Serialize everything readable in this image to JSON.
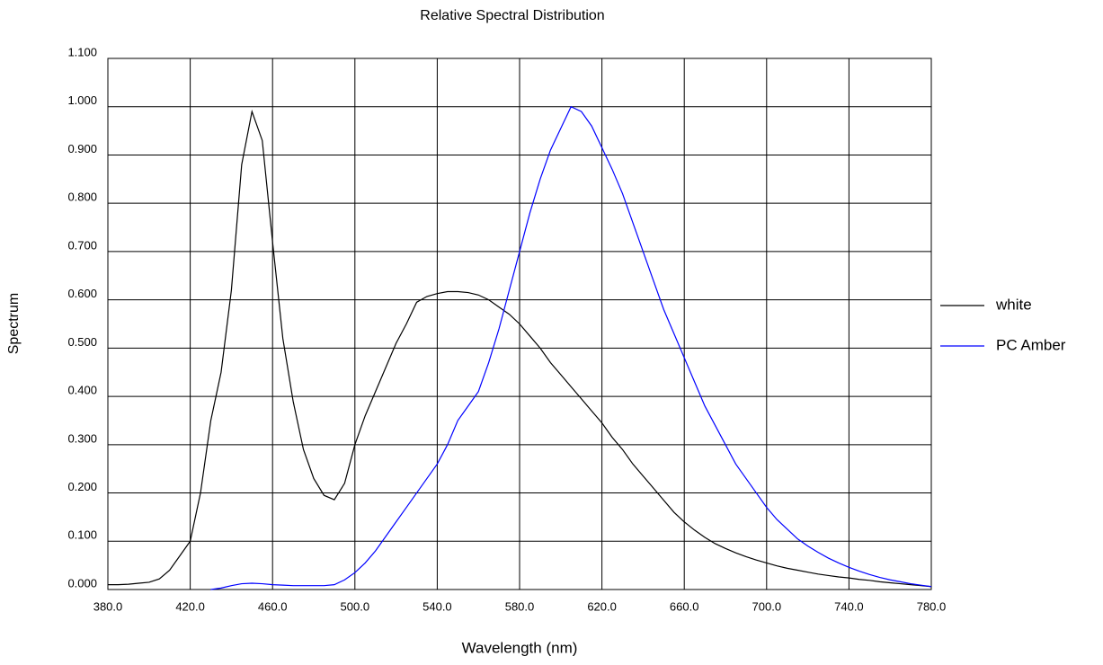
{
  "chart_data": {
    "type": "line",
    "title": "Relative Spectral Distribution",
    "x_label": "Wavelength (nm)",
    "y_label": "Spectrum",
    "x": [
      380,
      385,
      390,
      395,
      400,
      405,
      410,
      415,
      420,
      425,
      430,
      435,
      440,
      445,
      450,
      455,
      460,
      465,
      470,
      475,
      480,
      485,
      490,
      495,
      500,
      505,
      510,
      515,
      520,
      525,
      530,
      535,
      540,
      545,
      550,
      555,
      560,
      565,
      570,
      575,
      580,
      585,
      590,
      595,
      600,
      605,
      610,
      615,
      620,
      625,
      630,
      635,
      640,
      645,
      650,
      655,
      660,
      665,
      670,
      675,
      680,
      685,
      690,
      695,
      700,
      705,
      710,
      715,
      720,
      725,
      730,
      735,
      740,
      745,
      750,
      755,
      760,
      765,
      770,
      775,
      780
    ],
    "series": [
      {
        "name": "white",
        "color": "#000000",
        "values": [
          0.01,
          0.01,
          0.011,
          0.013,
          0.015,
          0.022,
          0.04,
          0.07,
          0.1,
          0.2,
          0.35,
          0.45,
          0.62,
          0.88,
          0.99,
          0.93,
          0.72,
          0.52,
          0.39,
          0.29,
          0.23,
          0.195,
          0.186,
          0.22,
          0.3,
          0.36,
          0.41,
          0.46,
          0.51,
          0.55,
          0.595,
          0.607,
          0.613,
          0.617,
          0.617,
          0.615,
          0.61,
          0.6,
          0.585,
          0.57,
          0.55,
          0.525,
          0.5,
          0.47,
          0.445,
          0.42,
          0.395,
          0.37,
          0.345,
          0.315,
          0.29,
          0.26,
          0.235,
          0.21,
          0.185,
          0.16,
          0.14,
          0.123,
          0.108,
          0.095,
          0.085,
          0.076,
          0.068,
          0.061,
          0.055,
          0.049,
          0.044,
          0.04,
          0.036,
          0.032,
          0.029,
          0.026,
          0.024,
          0.021,
          0.019,
          0.016,
          0.014,
          0.012,
          0.01,
          0.008,
          0.006
        ]
      },
      {
        "name": "PC Amber",
        "color": "#0000ff",
        "values": [
          null,
          null,
          null,
          null,
          null,
          null,
          null,
          null,
          null,
          null,
          0.0,
          0.003,
          0.008,
          0.012,
          0.013,
          0.012,
          0.01,
          0.009,
          0.008,
          0.008,
          0.008,
          0.008,
          0.01,
          0.02,
          0.035,
          0.055,
          0.08,
          0.11,
          0.14,
          0.17,
          0.2,
          0.23,
          0.26,
          0.3,
          0.35,
          0.38,
          0.41,
          0.47,
          0.54,
          0.62,
          0.7,
          0.78,
          0.85,
          0.91,
          0.955,
          1.0,
          0.99,
          0.96,
          0.915,
          0.87,
          0.82,
          0.76,
          0.7,
          0.64,
          0.58,
          0.53,
          0.48,
          0.43,
          0.38,
          0.34,
          0.3,
          0.26,
          0.23,
          0.2,
          0.17,
          0.145,
          0.125,
          0.105,
          0.09,
          0.077,
          0.065,
          0.055,
          0.046,
          0.038,
          0.031,
          0.025,
          0.02,
          0.016,
          0.012,
          0.009,
          0.006
        ]
      }
    ],
    "xlim": [
      380,
      780
    ],
    "xticks": [
      {
        "value": 380,
        "label": "380.0"
      },
      {
        "value": 420,
        "label": "420.0"
      },
      {
        "value": 460,
        "label": "460.0"
      },
      {
        "value": 500,
        "label": "500.0"
      },
      {
        "value": 540,
        "label": "540.0"
      },
      {
        "value": 580,
        "label": "580.0"
      },
      {
        "value": 620,
        "label": "620.0"
      },
      {
        "value": 660,
        "label": "660.0"
      },
      {
        "value": 700,
        "label": "700.0"
      },
      {
        "value": 740,
        "label": "740.0"
      },
      {
        "value": 780,
        "label": "780.0"
      }
    ],
    "ylim": [
      0,
      1.1
    ],
    "yticks": [
      {
        "value": 0,
        "label": "0.000"
      },
      {
        "value": 0.1,
        "label": "0.100"
      },
      {
        "value": 0.2,
        "label": "0.200"
      },
      {
        "value": 0.3,
        "label": "0.300"
      },
      {
        "value": 0.4,
        "label": "0.400"
      },
      {
        "value": 0.5,
        "label": "0.500"
      },
      {
        "value": 0.6,
        "label": "0.600"
      },
      {
        "value": 0.7,
        "label": "0.700"
      },
      {
        "value": 0.8,
        "label": "0.800"
      },
      {
        "value": 0.9,
        "label": "0.900"
      },
      {
        "value": 1.0,
        "label": "1.000"
      },
      {
        "value": 1.1,
        "label": "1.100"
      }
    ],
    "grid": true,
    "legend": "right"
  }
}
